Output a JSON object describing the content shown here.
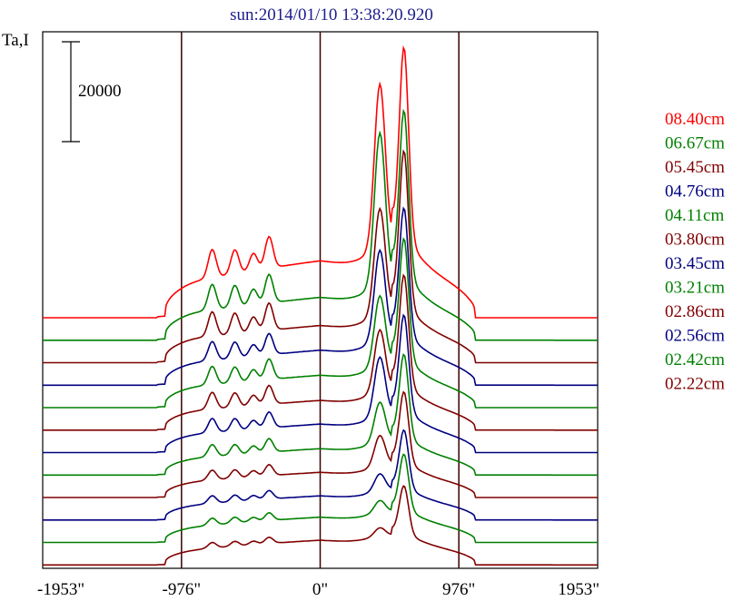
{
  "chart_data": {
    "type": "line",
    "title": "sun:2014/01/10 13:38:20.920",
    "ylabel": "Ta,I",
    "scale_bar_label": "20000",
    "scale_bar_value": 20000,
    "x_ticks": [
      {
        "value": -1953,
        "label": "-1953\""
      },
      {
        "value": -976,
        "label": "-976\""
      },
      {
        "value": 0,
        "label": "0\""
      },
      {
        "value": 976,
        "label": "976\""
      },
      {
        "value": 1953,
        "label": "1953\""
      }
    ],
    "vertical_lines": [
      -976,
      0,
      976
    ],
    "xlim": [
      -1953,
      1953
    ],
    "grid": false,
    "legend_position": "right",
    "series": [
      {
        "name": "08.40cm",
        "color": "#ff0000",
        "offset": 50000,
        "amp": 38000,
        "peak1": 0.86,
        "peak2": 1.0,
        "disk": 0.3,
        "limb": 0.4,
        "dip": 0.55
      },
      {
        "name": "06.67cm",
        "color": "#008000",
        "offset": 45500,
        "amp": 33000,
        "peak1": 0.92,
        "peak2": 1.0,
        "disk": 0.26,
        "limb": 0.4,
        "dip": 0.3
      },
      {
        "name": "05.45cm",
        "color": "#800000",
        "offset": 41000,
        "amp": 31000,
        "peak1": 0.68,
        "peak2": 1.0,
        "disk": 0.24,
        "limb": 0.38,
        "dip": 0.4
      },
      {
        "name": "04.76cm",
        "color": "#000080",
        "offset": 36500,
        "amp": 25000,
        "peak1": 0.72,
        "peak2": 1.0,
        "disk": 0.28,
        "limb": 0.42,
        "dip": 0.35
      },
      {
        "name": "04.11cm",
        "color": "#008000",
        "offset": 32000,
        "amp": 24000,
        "peak1": 0.58,
        "peak2": 1.0,
        "disk": 0.27,
        "limb": 0.42,
        "dip": 0.4
      },
      {
        "name": "03.80cm",
        "color": "#800000",
        "offset": 27500,
        "amp": 22000,
        "peak1": 0.56,
        "peak2": 1.0,
        "disk": 0.27,
        "limb": 0.42,
        "dip": 0.4
      },
      {
        "name": "03.45cm",
        "color": "#000080",
        "offset": 23000,
        "amp": 19000,
        "peak1": 0.62,
        "peak2": 1.0,
        "disk": 0.3,
        "limb": 0.45,
        "dip": 0.45
      },
      {
        "name": "03.21cm",
        "color": "#008000",
        "offset": 18500,
        "amp": 16500,
        "peak1": 0.48,
        "peak2": 1.0,
        "disk": 0.32,
        "limb": 0.45,
        "dip": 0.45
      },
      {
        "name": "02.86cm",
        "color": "#800000",
        "offset": 14000,
        "amp": 14000,
        "peak1": 0.44,
        "peak2": 1.0,
        "disk": 0.36,
        "limb": 0.48,
        "dip": 0.5
      },
      {
        "name": "02.56cm",
        "color": "#000080",
        "offset": 9500,
        "amp": 11500,
        "peak1": 0.3,
        "peak2": 1.0,
        "disk": 0.42,
        "limb": 0.5,
        "dip": 0.55
      },
      {
        "name": "02.42cm",
        "color": "#008000",
        "offset": 5000,
        "amp": 11000,
        "peak1": 0.22,
        "peak2": 1.0,
        "disk": 0.46,
        "limb": 0.52,
        "dip": 0.6
      },
      {
        "name": "02.22cm",
        "color": "#800000",
        "offset": 500,
        "amp": 9500,
        "peak1": 0.18,
        "peak2": 1.0,
        "disk": 0.52,
        "limb": 0.55,
        "dip": 0.65
      }
    ]
  }
}
